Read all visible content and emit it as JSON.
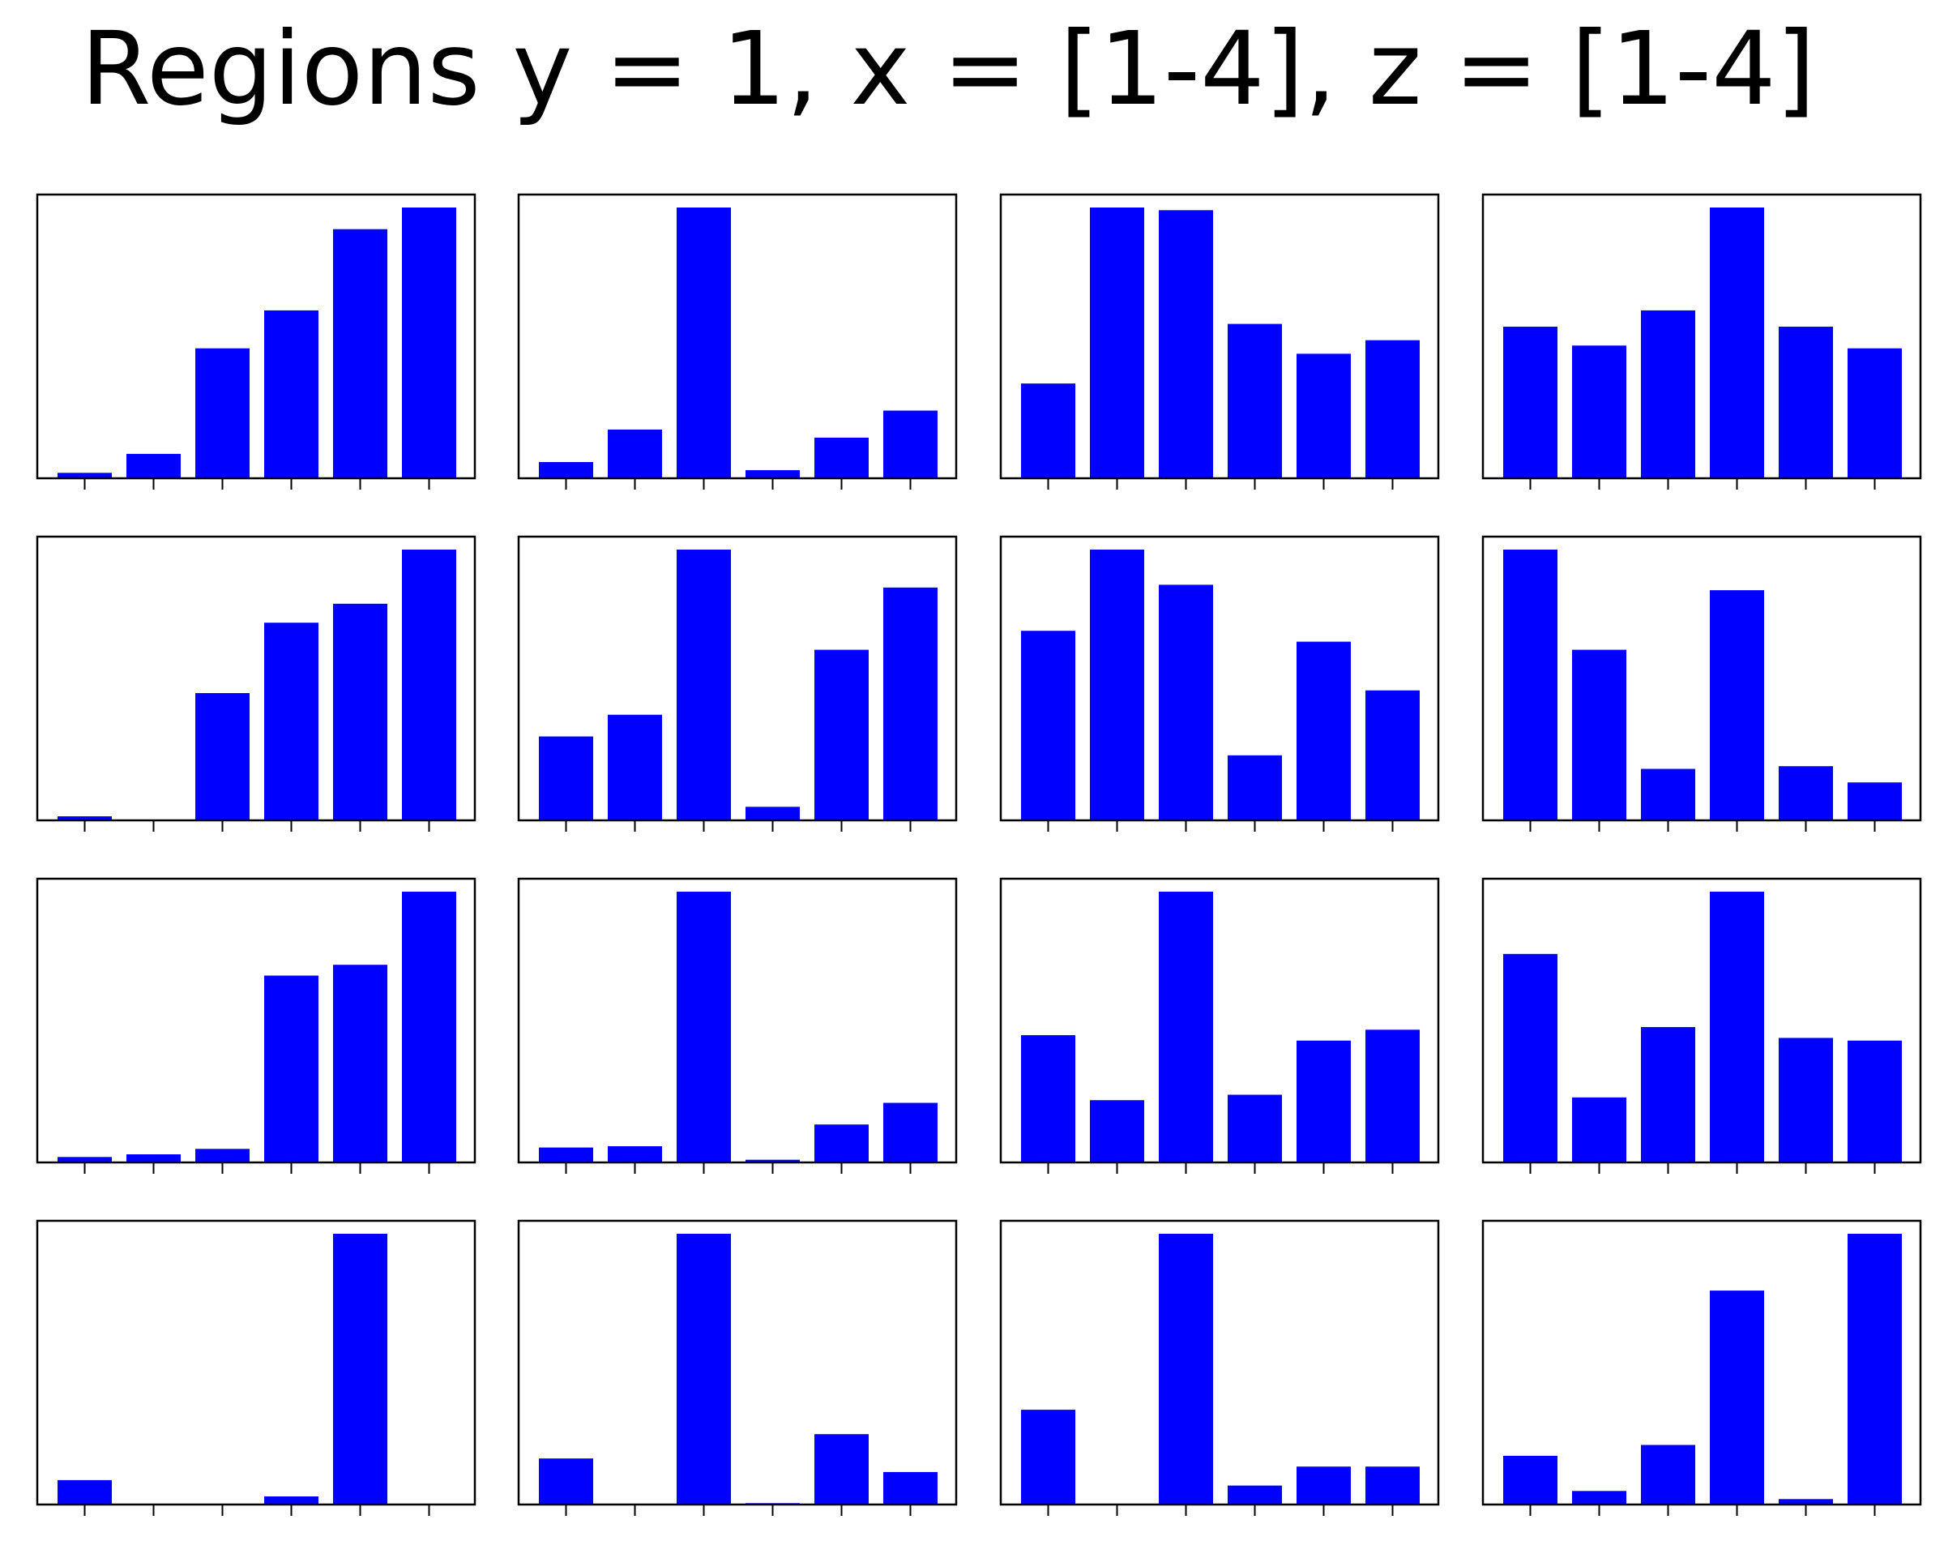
{
  "figure": {
    "title": "Regions y = 1, x = [1-4], z = [1-4]",
    "bar_color": "#0000ff",
    "frame_color": "#000000",
    "background": "#ffffff"
  },
  "chart_data": [
    {
      "type": "bar",
      "row": 1,
      "col": 1,
      "ylim": [
        0,
        1
      ],
      "values": [
        0.02,
        0.09,
        0.48,
        0.62,
        0.92,
        1.0
      ]
    },
    {
      "type": "bar",
      "row": 1,
      "col": 2,
      "ylim": [
        0,
        1
      ],
      "values": [
        0.06,
        0.18,
        1.0,
        0.03,
        0.15,
        0.25
      ]
    },
    {
      "type": "bar",
      "row": 1,
      "col": 3,
      "ylim": [
        0,
        1
      ],
      "values": [
        0.35,
        1.0,
        0.99,
        0.57,
        0.46,
        0.51
      ]
    },
    {
      "type": "bar",
      "row": 1,
      "col": 4,
      "ylim": [
        0,
        1
      ],
      "values": [
        0.56,
        0.49,
        0.62,
        1.0,
        0.56,
        0.48
      ]
    },
    {
      "type": "bar",
      "row": 2,
      "col": 1,
      "ylim": [
        0,
        1
      ],
      "values": [
        0.015,
        0.0,
        0.47,
        0.73,
        0.8,
        1.0
      ]
    },
    {
      "type": "bar",
      "row": 2,
      "col": 2,
      "ylim": [
        0,
        1
      ],
      "values": [
        0.31,
        0.39,
        1.0,
        0.05,
        0.63,
        0.86
      ]
    },
    {
      "type": "bar",
      "row": 2,
      "col": 3,
      "ylim": [
        0,
        1
      ],
      "values": [
        0.7,
        1.0,
        0.87,
        0.24,
        0.66,
        0.48
      ]
    },
    {
      "type": "bar",
      "row": 2,
      "col": 4,
      "ylim": [
        0,
        1
      ],
      "values": [
        1.0,
        0.63,
        0.19,
        0.85,
        0.2,
        0.14
      ]
    },
    {
      "type": "bar",
      "row": 3,
      "col": 1,
      "ylim": [
        0,
        1
      ],
      "values": [
        0.02,
        0.03,
        0.05,
        0.69,
        0.73,
        1.0
      ]
    },
    {
      "type": "bar",
      "row": 3,
      "col": 2,
      "ylim": [
        0,
        1
      ],
      "values": [
        0.055,
        0.06,
        1.0,
        0.01,
        0.14,
        0.22
      ]
    },
    {
      "type": "bar",
      "row": 3,
      "col": 3,
      "ylim": [
        0,
        1
      ],
      "values": [
        0.47,
        0.23,
        1.0,
        0.25,
        0.45,
        0.49
      ]
    },
    {
      "type": "bar",
      "row": 3,
      "col": 4,
      "ylim": [
        0,
        1
      ],
      "values": [
        0.77,
        0.24,
        0.5,
        1.0,
        0.46,
        0.45
      ]
    },
    {
      "type": "bar",
      "row": 4,
      "col": 1,
      "ylim": [
        0,
        1
      ],
      "values": [
        0.09,
        0.0,
        0.0,
        0.03,
        1.0,
        0.0
      ]
    },
    {
      "type": "bar",
      "row": 4,
      "col": 2,
      "ylim": [
        0,
        1
      ],
      "values": [
        0.17,
        0.0,
        1.0,
        0.005,
        0.26,
        0.12
      ]
    },
    {
      "type": "bar",
      "row": 4,
      "col": 3,
      "ylim": [
        0,
        1
      ],
      "values": [
        0.35,
        0.0,
        1.0,
        0.07,
        0.14,
        0.14
      ]
    },
    {
      "type": "bar",
      "row": 4,
      "col": 4,
      "ylim": [
        0,
        1
      ],
      "values": [
        0.18,
        0.05,
        0.22,
        0.79,
        0.02,
        1.0
      ]
    }
  ]
}
